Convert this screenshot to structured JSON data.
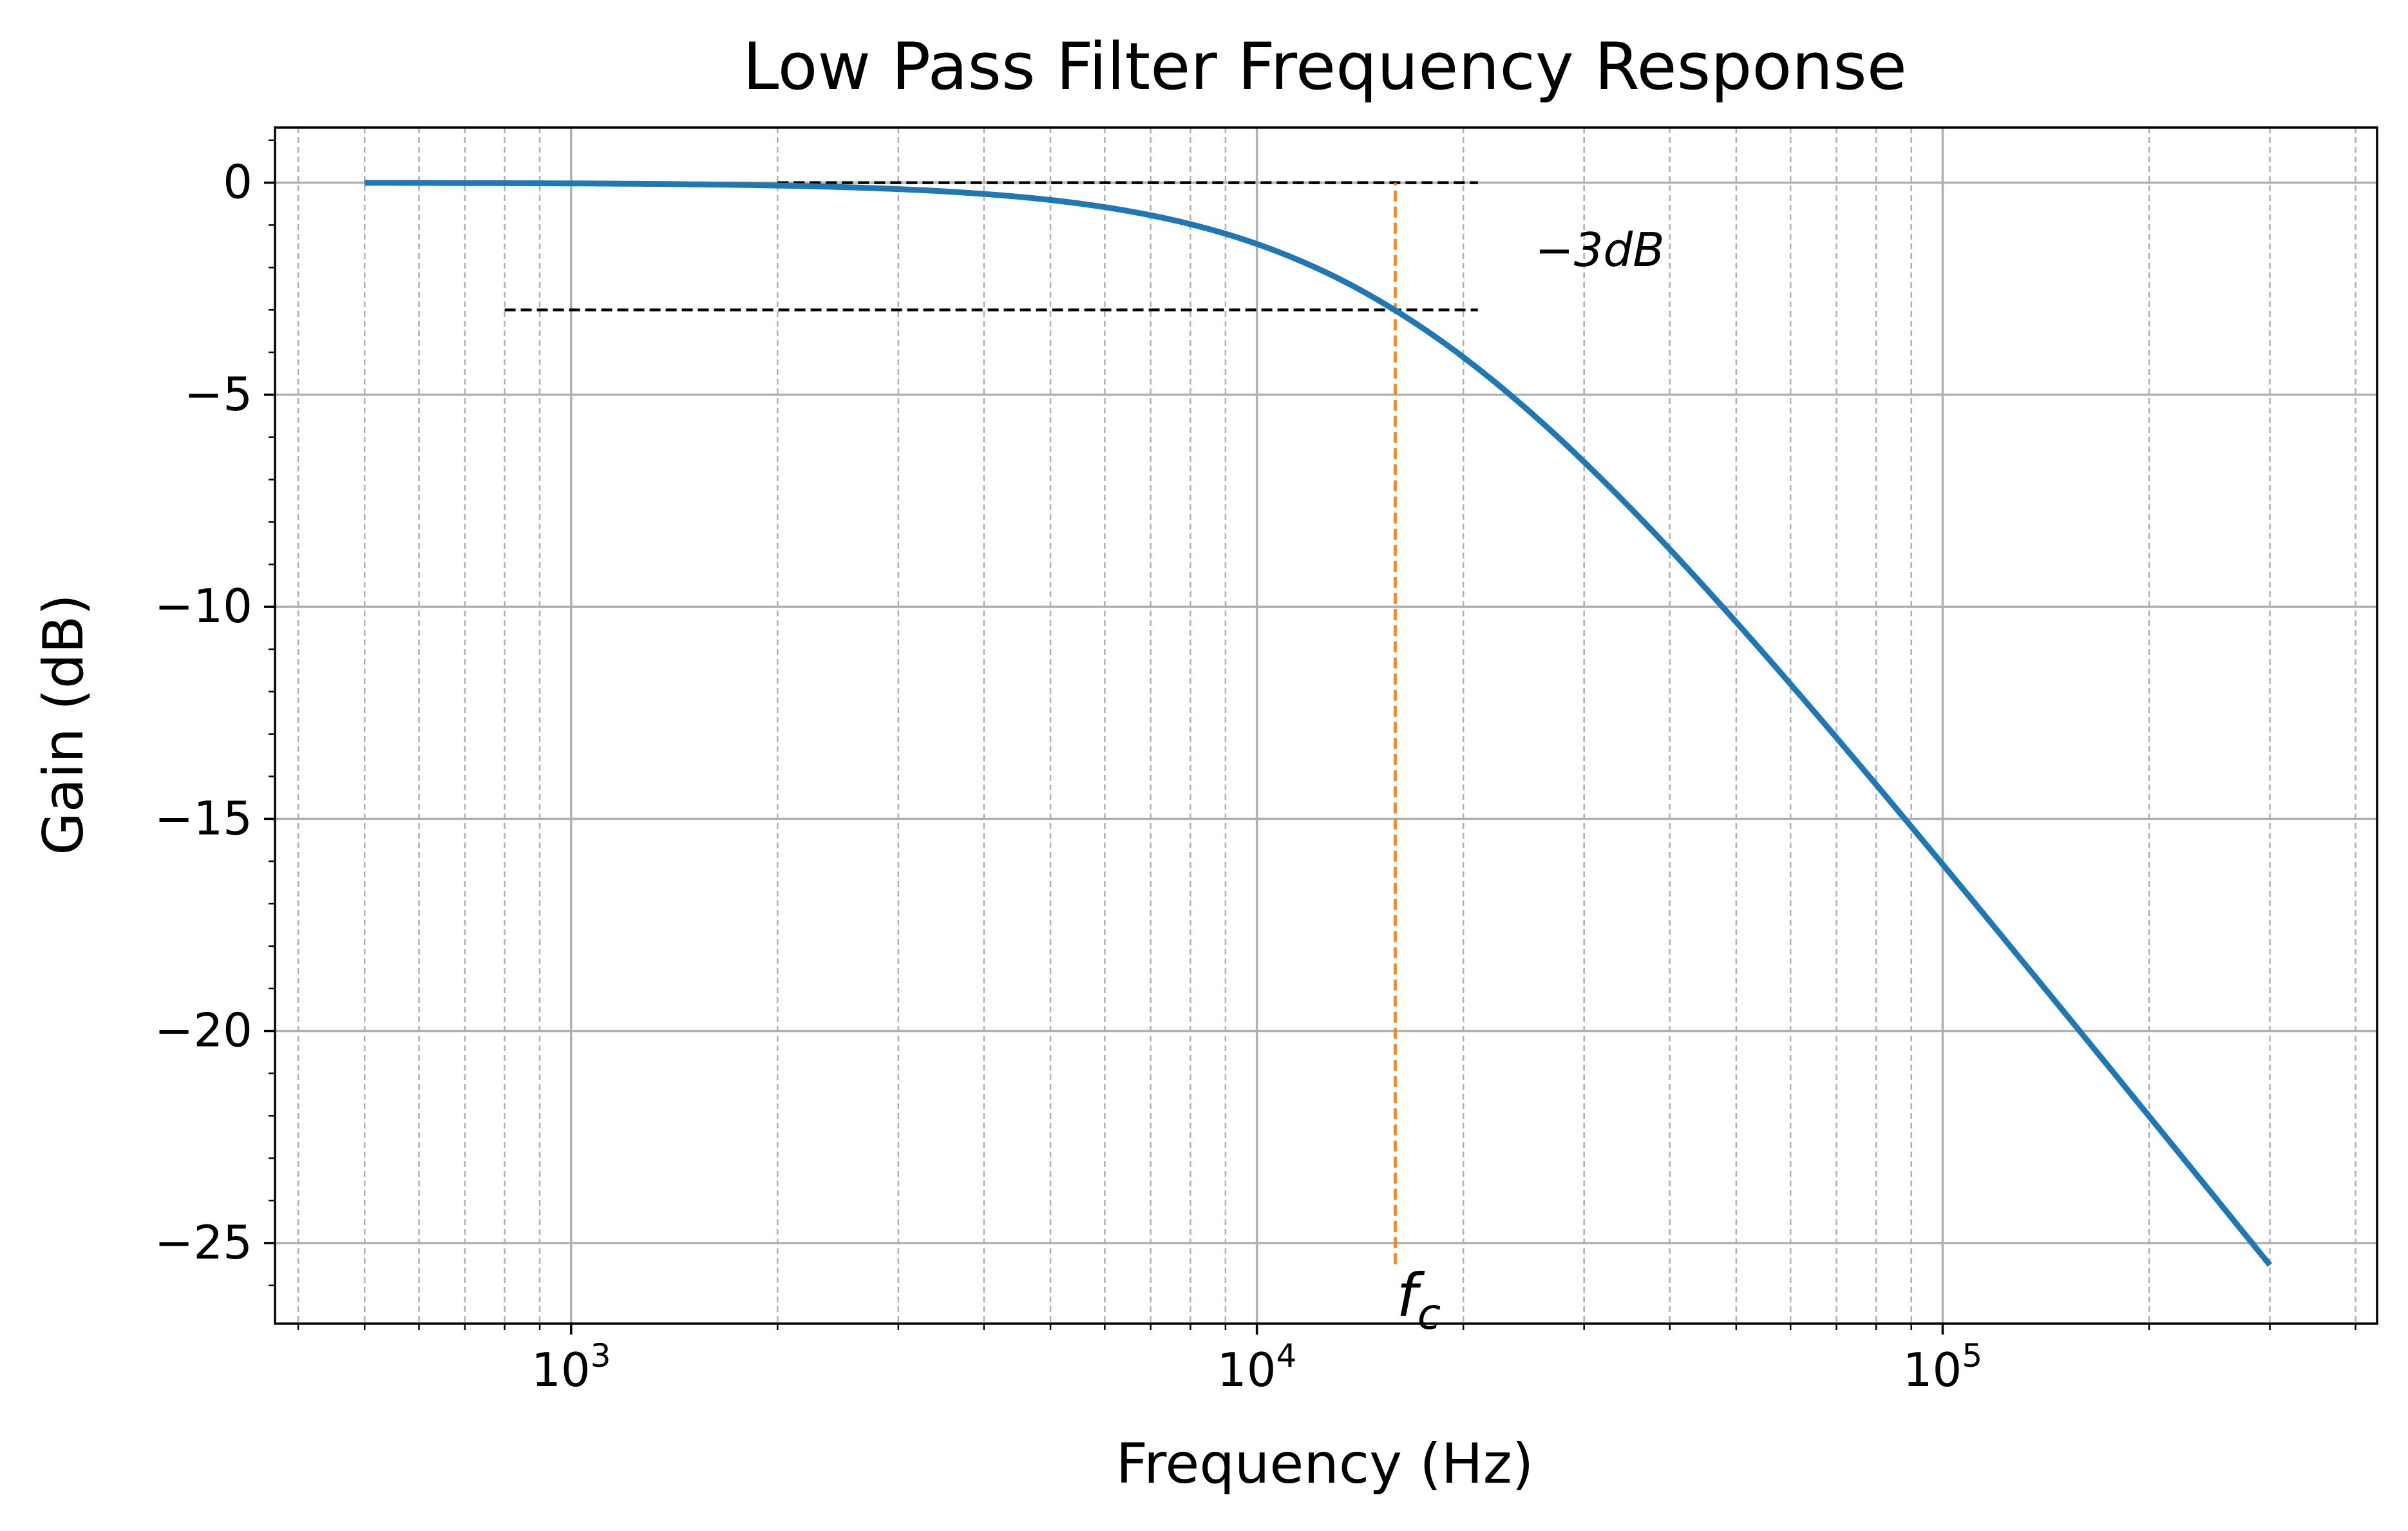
{
  "chart_data": {
    "type": "line",
    "title": "Low Pass Filter Frequency Response",
    "xlabel": "Frequency (Hz)",
    "ylabel": "Gain (dB)",
    "xscale": "log",
    "xlim": [
      370,
      430000
    ],
    "ylim": [
      -26.9,
      1.3
    ],
    "grid": {
      "major": true,
      "minor": true
    },
    "x_ticks": [
      {
        "value": 1000,
        "base": "10",
        "exp": "3"
      },
      {
        "value": 10000,
        "base": "10",
        "exp": "4"
      },
      {
        "value": 100000,
        "base": "10",
        "exp": "5"
      }
    ],
    "y_ticks": [
      {
        "value": 0,
        "label": "0"
      },
      {
        "value": -5,
        "label": "−5"
      },
      {
        "value": -10,
        "label": "−10"
      },
      {
        "value": -15,
        "label": "−15"
      },
      {
        "value": -20,
        "label": "−20"
      },
      {
        "value": -25,
        "label": "−25"
      }
    ],
    "series": [
      {
        "color": "#1f77b4",
        "cutoff_hz": 15915,
        "x": [
          500,
          1000,
          2000,
          3000,
          5000,
          7000,
          10000,
          12000,
          15915,
          20000,
          30000,
          50000,
          70000,
          100000,
          150000,
          200000,
          300000
        ],
        "y": [
          0,
          -0.02,
          -0.07,
          -0.15,
          -0.41,
          -0.75,
          -1.44,
          -1.94,
          -3.01,
          -4.18,
          -6.59,
          -10.39,
          -13.16,
          -16.07,
          -19.57,
          -22.05,
          -25.56
        ]
      }
    ],
    "reference_lines": [
      {
        "kind": "hline",
        "y": 0,
        "x_start": 2000,
        "x_end": 21000,
        "color": "#000000",
        "style": "dashed"
      },
      {
        "kind": "hline",
        "y": -3,
        "x_start": 800,
        "x_end": 21000,
        "color": "#000000",
        "style": "dashed"
      },
      {
        "kind": "vline",
        "x": 15915,
        "y_start": -25.5,
        "y_end": 0,
        "color": "#ff7f0e",
        "style": "dashed"
      }
    ],
    "annotations": [
      {
        "text": "−3",
        "italic_part": "dB",
        "x": 25000,
        "y": -1.6
      },
      {
        "text": "f",
        "subscript": "c",
        "x": 15915,
        "y": -26.9
      }
    ]
  }
}
